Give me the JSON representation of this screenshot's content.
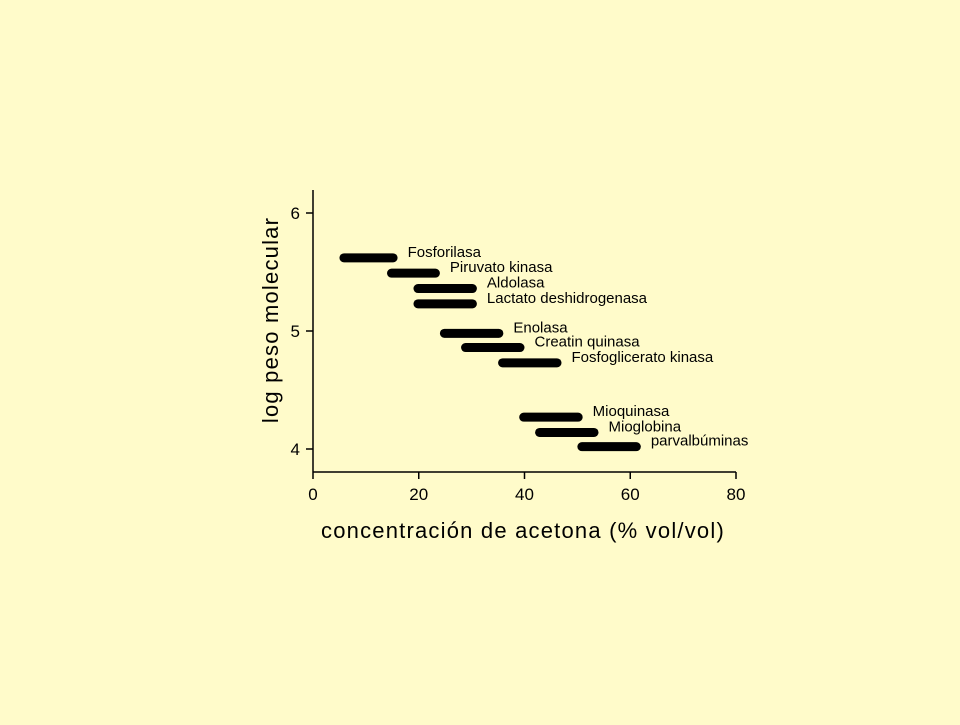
{
  "page": {
    "background": "#FFFBCA"
  },
  "chart_data": {
    "type": "range-bar",
    "title": "",
    "xlabel": "concentración de acetona (% vol/vol)",
    "ylabel": "log peso molecular",
    "xlim": [
      0,
      80
    ],
    "ylim": [
      3.8,
      6.2
    ],
    "xticks": [
      0,
      20,
      40,
      60,
      80
    ],
    "yticks": [
      4,
      5,
      6
    ],
    "grid": false,
    "bar_color": "#000000",
    "series": [
      {
        "label": "Fosforilasa",
        "x_start": 5,
        "x_end": 16,
        "y": 5.62
      },
      {
        "label": "Piruvato kinasa",
        "x_start": 14,
        "x_end": 24,
        "y": 5.49
      },
      {
        "label": "Aldolasa",
        "x_start": 19,
        "x_end": 31,
        "y": 5.36
      },
      {
        "label": "Lactato deshidrogenasa",
        "x_start": 19,
        "x_end": 31,
        "y": 5.23
      },
      {
        "label": "Enolasa",
        "x_start": 24,
        "x_end": 36,
        "y": 4.98
      },
      {
        "label": "Creatin quinasa",
        "x_start": 28,
        "x_end": 40,
        "y": 4.86
      },
      {
        "label": "Fosfoglicerato kinasa",
        "x_start": 35,
        "x_end": 47,
        "y": 4.73
      },
      {
        "label": "Mioquinasa",
        "x_start": 39,
        "x_end": 51,
        "y": 4.27
      },
      {
        "label": "Mioglobina",
        "x_start": 42,
        "x_end": 54,
        "y": 4.14
      },
      {
        "label": "parvalbúminas",
        "x_start": 50,
        "x_end": 62,
        "y": 4.02
      }
    ]
  }
}
